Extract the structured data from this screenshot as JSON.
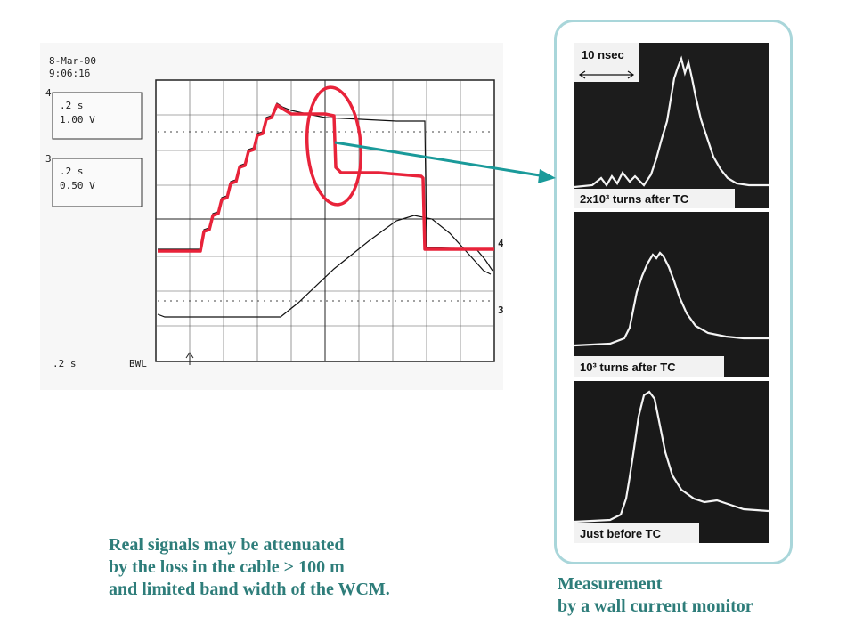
{
  "oscilloscope": {
    "date": "8-Mar-00",
    "time": "9:06:16",
    "channel4": {
      "label": "4",
      "timebase": ".2 s",
      "scale": "1.00 V"
    },
    "channel3": {
      "label": "3",
      "timebase": ".2 s",
      "scale": "0.50 V"
    },
    "footer_timebase": ".2  s",
    "footer_bw": "BWL",
    "trace4_marker": "4",
    "trace3_marker": "3"
  },
  "wcm": {
    "time_scale": "10 nsec",
    "panels": [
      {
        "label": "2x10³ turns after TC"
      },
      {
        "label": "10³ turns after TC"
      },
      {
        "label": "Just before TC"
      }
    ]
  },
  "captions": {
    "left": [
      "Real signals may be attenuated",
      "by the loss in the cable > 100 m",
      "and limited band width of the WCM."
    ],
    "right": [
      "Measurement",
      "by a wall current monitor"
    ]
  },
  "colors": {
    "highlight": "#e8233a",
    "arrow": "#1a9a9a",
    "caption": "#2e7d7a",
    "frame": "#a9d6da"
  }
}
